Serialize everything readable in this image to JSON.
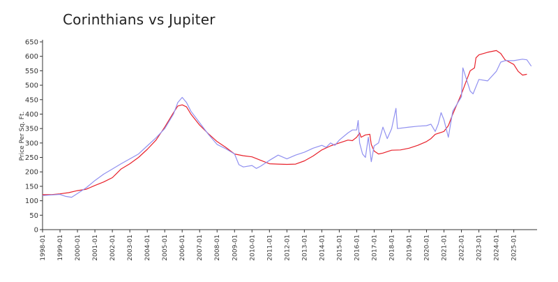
{
  "chart_data": {
    "type": "line",
    "title": "Corinthians vs Jupiter",
    "xlabel": "",
    "ylabel": "Price Per Sq. Ft.",
    "xlim": [
      "1998-01",
      "2026-05"
    ],
    "ylim": [
      0,
      650
    ],
    "yticks": [
      0,
      50,
      100,
      150,
      200,
      250,
      300,
      350,
      400,
      450,
      500,
      550,
      600,
      650
    ],
    "xticks": [
      "1998-01",
      "1999-01",
      "2000-01",
      "2001-01",
      "2002-01",
      "2003-01",
      "2004-01",
      "2005-01",
      "2006-01",
      "2007-01",
      "2008-01",
      "2009-01",
      "2010-01",
      "2011-01",
      "2012-01",
      "2013-01",
      "2014-01",
      "2015-01",
      "2016-01",
      "2017-01",
      "2018-01",
      "2019-01",
      "2020-01",
      "2021-01",
      "2022-01",
      "2023-01",
      "2024-01",
      "2025-01"
    ],
    "grid": false,
    "legend": "none",
    "series": [
      {
        "color": "#e8202a",
        "points": [
          [
            "1998-01",
            121
          ],
          [
            "1998-07",
            121
          ],
          [
            "1999-01",
            124
          ],
          [
            "1999-07",
            128
          ],
          [
            "2000-01",
            135
          ],
          [
            "2000-07",
            140
          ],
          [
            "2001-01",
            153
          ],
          [
            "2001-07",
            165
          ],
          [
            "2002-01",
            180
          ],
          [
            "2002-04",
            195
          ],
          [
            "2002-07",
            210
          ],
          [
            "2003-01",
            228
          ],
          [
            "2003-07",
            250
          ],
          [
            "2004-01",
            278
          ],
          [
            "2004-07",
            310
          ],
          [
            "2005-01",
            355
          ],
          [
            "2005-07",
            405
          ],
          [
            "2005-10",
            428
          ],
          [
            "2006-01",
            432
          ],
          [
            "2006-04",
            425
          ],
          [
            "2006-07",
            400
          ],
          [
            "2007-01",
            362
          ],
          [
            "2007-07",
            332
          ],
          [
            "2008-01",
            305
          ],
          [
            "2008-07",
            285
          ],
          [
            "2009-01",
            262
          ],
          [
            "2009-07",
            256
          ],
          [
            "2010-01",
            252
          ],
          [
            "2010-07",
            240
          ],
          [
            "2011-01",
            228
          ],
          [
            "2011-07",
            227
          ],
          [
            "2012-01",
            226
          ],
          [
            "2012-07",
            227
          ],
          [
            "2013-01",
            238
          ],
          [
            "2013-07",
            255
          ],
          [
            "2014-01",
            276
          ],
          [
            "2014-07",
            290
          ],
          [
            "2015-01",
            300
          ],
          [
            "2015-07",
            310
          ],
          [
            "2015-10",
            308
          ],
          [
            "2016-01",
            320
          ],
          [
            "2016-03",
            335
          ],
          [
            "2016-04",
            320
          ],
          [
            "2016-07",
            328
          ],
          [
            "2016-10",
            330
          ],
          [
            "2016-11",
            295
          ],
          [
            "2017-01",
            272
          ],
          [
            "2017-04",
            262
          ],
          [
            "2017-07",
            265
          ],
          [
            "2018-01",
            275
          ],
          [
            "2018-07",
            276
          ],
          [
            "2019-01",
            282
          ],
          [
            "2019-07",
            292
          ],
          [
            "2020-01",
            305
          ],
          [
            "2020-04",
            315
          ],
          [
            "2020-07",
            330
          ],
          [
            "2021-01",
            340
          ],
          [
            "2021-04",
            360
          ],
          [
            "2021-07",
            400
          ],
          [
            "2022-01",
            470
          ],
          [
            "2022-04",
            510
          ],
          [
            "2022-07",
            550
          ],
          [
            "2022-10",
            560
          ],
          [
            "2022-11",
            595
          ],
          [
            "2023-01",
            605
          ],
          [
            "2023-07",
            614
          ],
          [
            "2024-01",
            620
          ],
          [
            "2024-04",
            610
          ],
          [
            "2024-07",
            588
          ],
          [
            "2024-10",
            580
          ],
          [
            "2025-01",
            572
          ],
          [
            "2025-04",
            548
          ],
          [
            "2025-07",
            535
          ],
          [
            "2025-10",
            538
          ]
        ]
      },
      {
        "color": "#9090f0",
        "points": [
          [
            "1998-01",
            118
          ],
          [
            "1998-07",
            120
          ],
          [
            "1999-01",
            122
          ],
          [
            "1999-05",
            115
          ],
          [
            "1999-09",
            112
          ],
          [
            "2000-01",
            125
          ],
          [
            "2000-07",
            145
          ],
          [
            "2001-01",
            170
          ],
          [
            "2001-07",
            192
          ],
          [
            "2002-01",
            210
          ],
          [
            "2002-07",
            228
          ],
          [
            "2003-01",
            245
          ],
          [
            "2003-07",
            262
          ],
          [
            "2004-01",
            290
          ],
          [
            "2004-07",
            318
          ],
          [
            "2005-01",
            350
          ],
          [
            "2005-07",
            400
          ],
          [
            "2005-10",
            440
          ],
          [
            "2006-01",
            458
          ],
          [
            "2006-04",
            440
          ],
          [
            "2006-07",
            410
          ],
          [
            "2007-01",
            370
          ],
          [
            "2007-07",
            330
          ],
          [
            "2008-01",
            295
          ],
          [
            "2008-07",
            280
          ],
          [
            "2009-01",
            262
          ],
          [
            "2009-04",
            225
          ],
          [
            "2009-07",
            217
          ],
          [
            "2010-01",
            222
          ],
          [
            "2010-04",
            212
          ],
          [
            "2010-07",
            220
          ],
          [
            "2011-01",
            240
          ],
          [
            "2011-07",
            258
          ],
          [
            "2012-01",
            245
          ],
          [
            "2012-07",
            258
          ],
          [
            "2013-01",
            268
          ],
          [
            "2013-07",
            282
          ],
          [
            "2014-01",
            292
          ],
          [
            "2014-04",
            285
          ],
          [
            "2014-07",
            300
          ],
          [
            "2014-10",
            292
          ],
          [
            "2015-01",
            310
          ],
          [
            "2015-07",
            335
          ],
          [
            "2015-10",
            345
          ],
          [
            "2016-01",
            345
          ],
          [
            "2016-02",
            378
          ],
          [
            "2016-03",
            300
          ],
          [
            "2016-05",
            262
          ],
          [
            "2016-07",
            250
          ],
          [
            "2016-09",
            320
          ],
          [
            "2016-11",
            235
          ],
          [
            "2017-01",
            290
          ],
          [
            "2017-04",
            300
          ],
          [
            "2017-07",
            355
          ],
          [
            "2017-10",
            315
          ],
          [
            "2018-01",
            350
          ],
          [
            "2018-04",
            420
          ],
          [
            "2018-05",
            350
          ],
          [
            "2019-01",
            355
          ],
          [
            "2019-07",
            358
          ],
          [
            "2020-01",
            360
          ],
          [
            "2020-04",
            365
          ],
          [
            "2020-07",
            340
          ],
          [
            "2020-09",
            365
          ],
          [
            "2020-11",
            405
          ],
          [
            "2021-01",
            380
          ],
          [
            "2021-04",
            320
          ],
          [
            "2021-07",
            410
          ],
          [
            "2022-01",
            460
          ],
          [
            "2022-02",
            560
          ],
          [
            "2022-07",
            480
          ],
          [
            "2022-09",
            470
          ],
          [
            "2023-01",
            520
          ],
          [
            "2023-07",
            515
          ],
          [
            "2024-01",
            548
          ],
          [
            "2024-04",
            580
          ],
          [
            "2024-07",
            585
          ],
          [
            "2025-01",
            585
          ],
          [
            "2025-07",
            590
          ],
          [
            "2025-10",
            588
          ],
          [
            "2026-01",
            566
          ]
        ]
      }
    ]
  }
}
